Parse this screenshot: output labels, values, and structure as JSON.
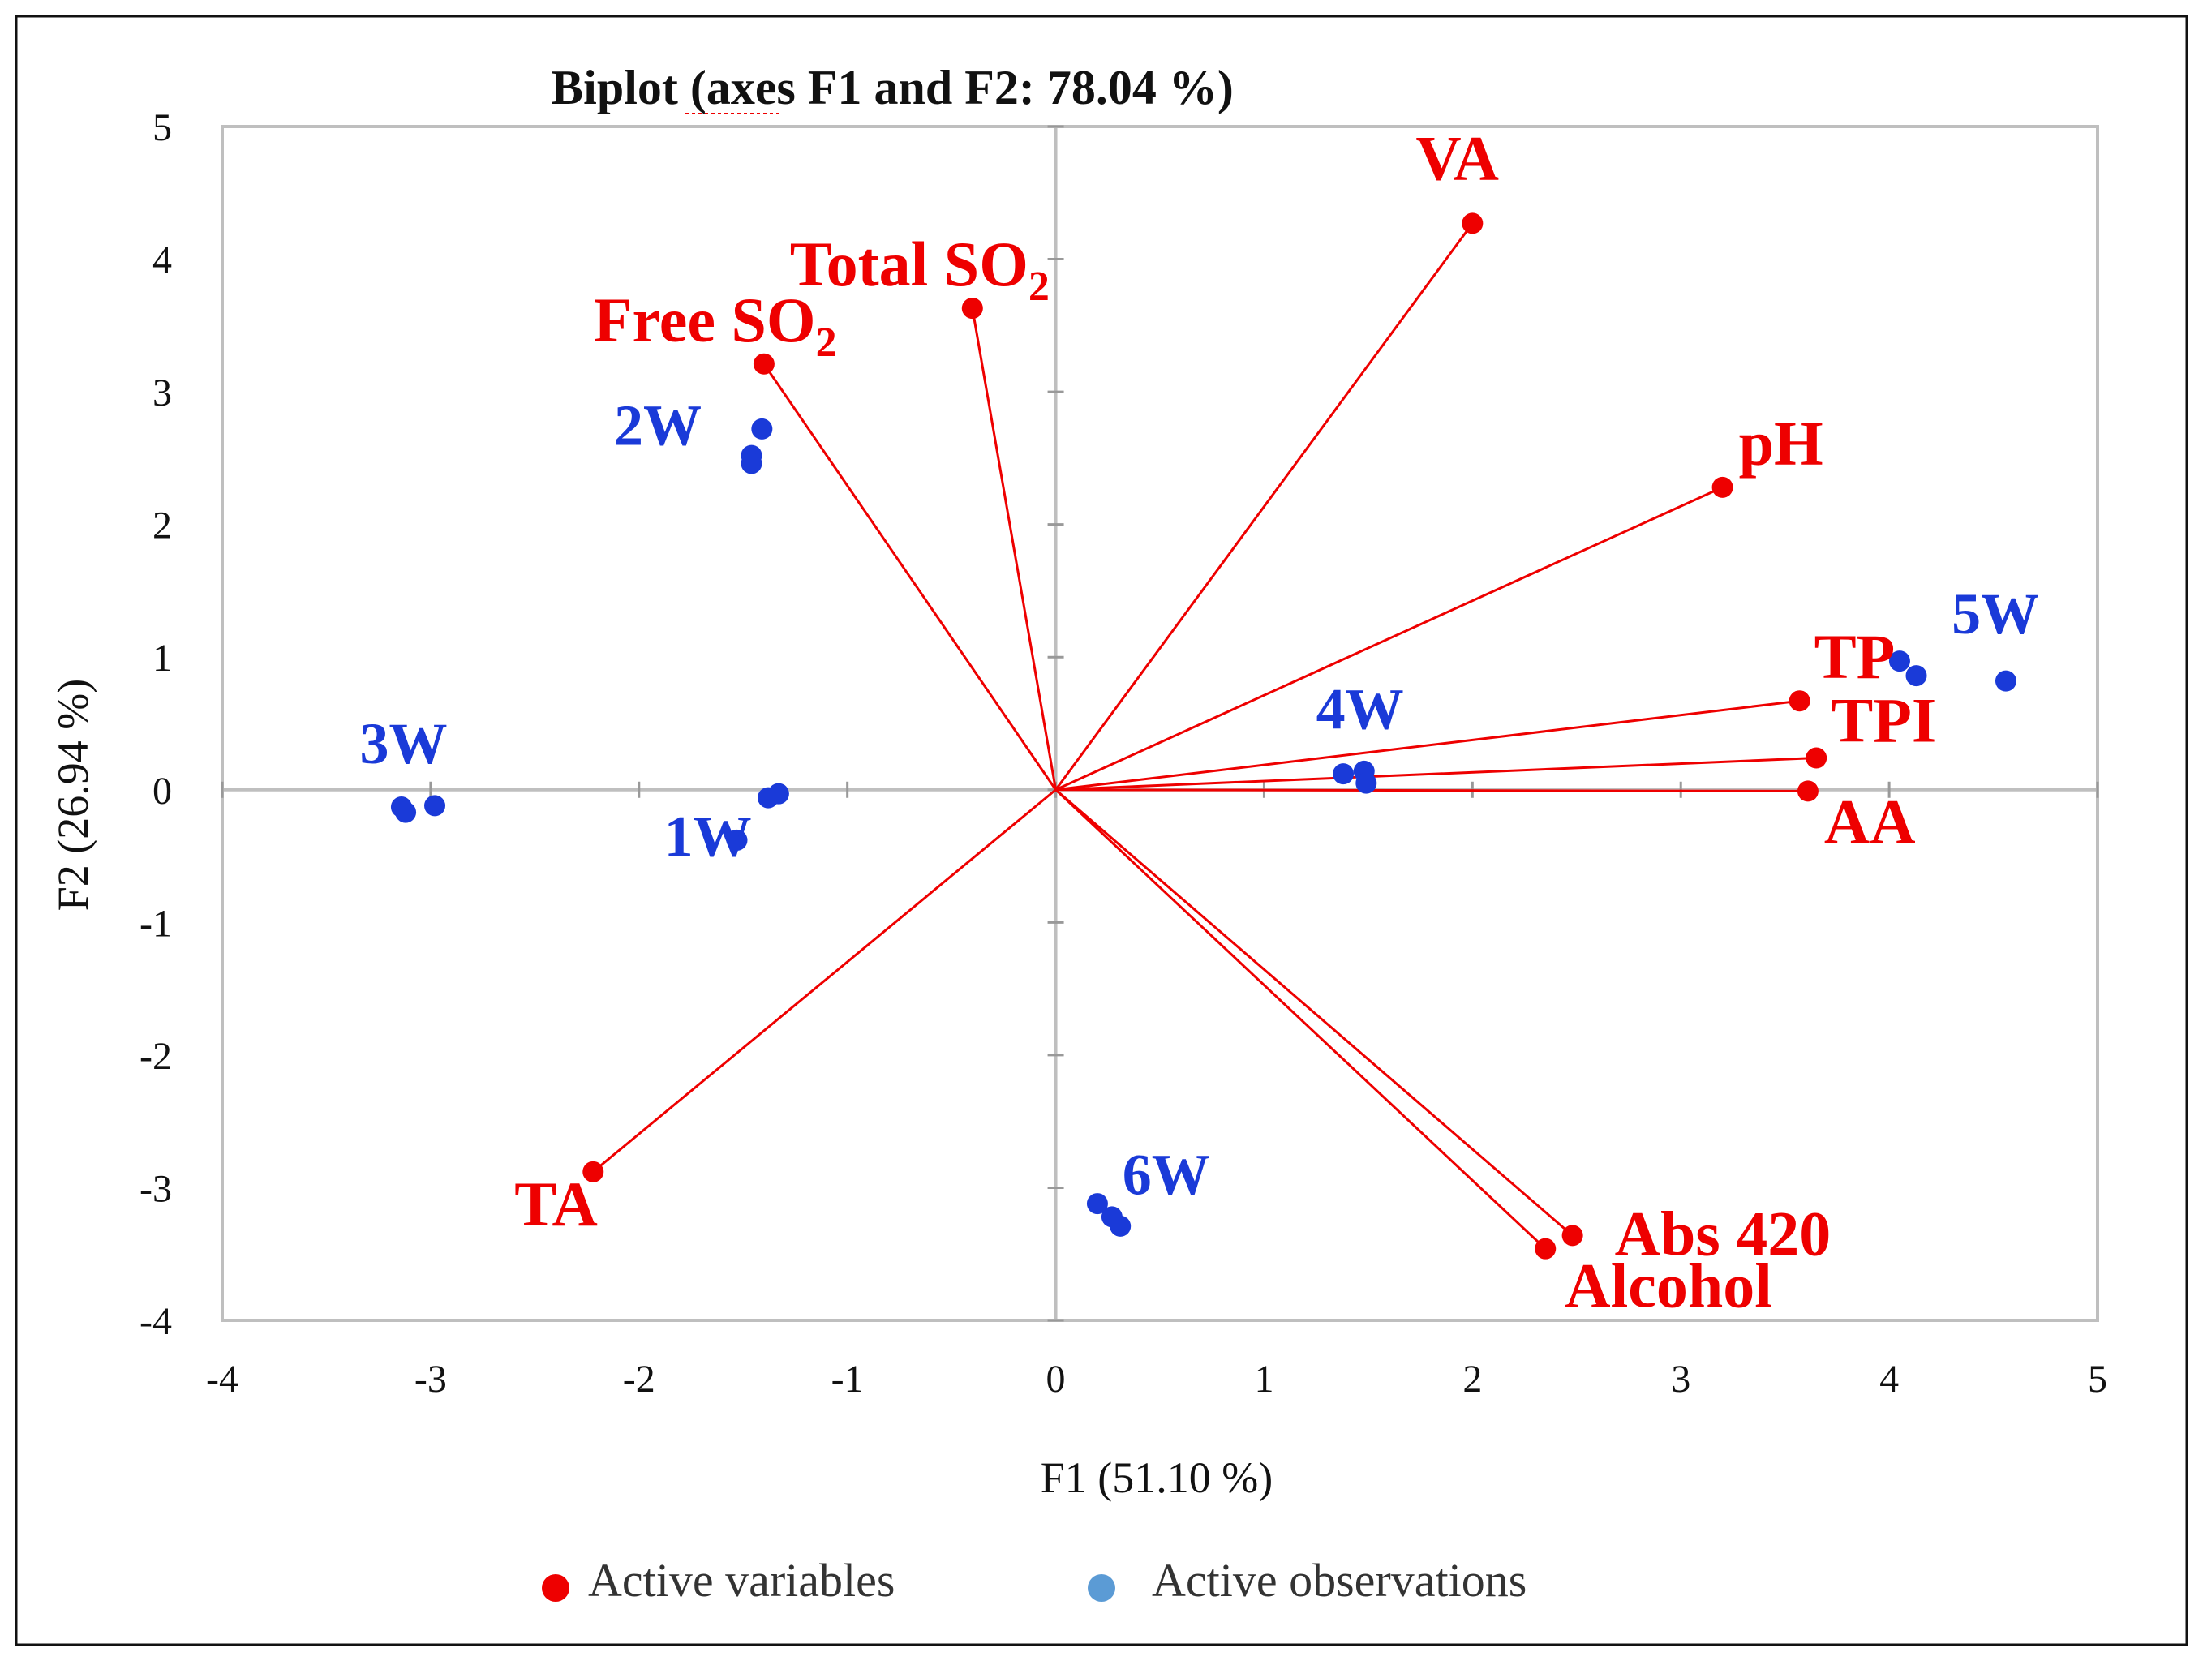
{
  "chart_data": {
    "type": "scatter",
    "subtype": "biplot",
    "title": "Biplot (axes F1 and F2: 78.04 %)",
    "xlabel": "F1 (51.10 %)",
    "ylabel": "F2 (26.94 %)",
    "xlim": [
      -4,
      5
    ],
    "ylim": [
      -4,
      5
    ],
    "xticks": [
      "-4",
      "-3",
      "-2",
      "-1",
      "0",
      "1",
      "2",
      "3",
      "4",
      "5"
    ],
    "yticks": [
      "-4",
      "-3",
      "-2",
      "-1",
      "0",
      "1",
      "2",
      "3",
      "4",
      "5"
    ],
    "colors": {
      "variables": "#ee0000",
      "observations": "#1a3ad8",
      "legend_observations": "#5b9bd5",
      "frame": "#bfbfbf"
    },
    "variables": [
      {
        "label": "VA",
        "x": 2.0,
        "y": 4.27
      },
      {
        "label": "Total SO",
        "sub": "2",
        "x": -0.4,
        "y": 3.63
      },
      {
        "label": "Free SO",
        "sub": "2",
        "x": -1.4,
        "y": 3.21
      },
      {
        "label": "pH",
        "x": 3.2,
        "y": 2.28
      },
      {
        "label": "TP",
        "x": 3.57,
        "y": 0.67
      },
      {
        "label": "TPI",
        "x": 3.65,
        "y": 0.24
      },
      {
        "label": "AA",
        "x": 3.61,
        "y": -0.01
      },
      {
        "label": "TA",
        "x": -2.22,
        "y": -2.88
      },
      {
        "label": "Abs 420",
        "x": 2.48,
        "y": -3.36
      },
      {
        "label": "Alcohol",
        "x": 2.35,
        "y": -3.46
      }
    ],
    "observations": [
      {
        "group": "1W",
        "points": [
          [
            -1.38,
            -0.06
          ],
          [
            -1.33,
            -0.03
          ],
          [
            -1.53,
            -0.38
          ]
        ]
      },
      {
        "group": "2W",
        "points": [
          [
            -1.41,
            2.72
          ],
          [
            -1.46,
            2.52
          ],
          [
            -1.46,
            2.46
          ]
        ]
      },
      {
        "group": "3W",
        "points": [
          [
            -3.14,
            -0.13
          ],
          [
            -3.12,
            -0.17
          ],
          [
            -2.98,
            -0.12
          ]
        ]
      },
      {
        "group": "4W",
        "points": [
          [
            1.38,
            0.12
          ],
          [
            1.48,
            0.14
          ],
          [
            1.49,
            0.05
          ]
        ]
      },
      {
        "group": "5W",
        "points": [
          [
            4.05,
            0.97
          ],
          [
            4.13,
            0.86
          ],
          [
            4.56,
            0.82
          ]
        ]
      },
      {
        "group": "6W",
        "points": [
          [
            0.2,
            -3.12
          ],
          [
            0.27,
            -3.22
          ],
          [
            0.31,
            -3.29
          ]
        ]
      }
    ],
    "legend": {
      "position": "bottom",
      "entries": [
        "Active variables",
        "Active observations"
      ]
    }
  }
}
